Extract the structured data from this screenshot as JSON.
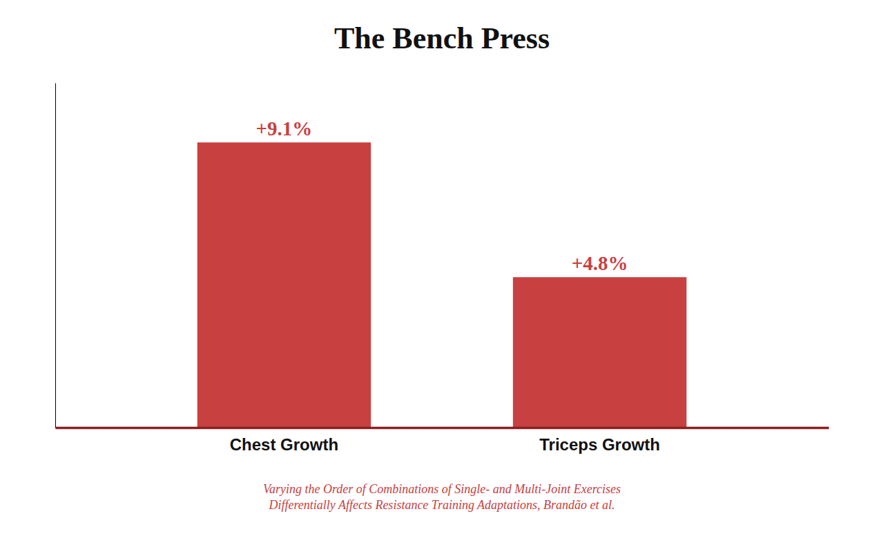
{
  "chart_data": {
    "type": "bar",
    "title": "The Bench Press",
    "categories": [
      "Chest Growth",
      "Triceps Growth"
    ],
    "values": [
      9.1,
      4.8
    ],
    "value_labels": [
      "+9.1%",
      "+4.8%"
    ],
    "data_labels": true,
    "color": "#C94040",
    "ylim": [
      0,
      11
    ],
    "tick_labels": "x",
    "annotations": [
      "Varying the Order of Combinations of Single- and Multi-Joint Exercises\nDifferentially Affects Resistance Training Adaptations, Brandão et al."
    ]
  }
}
